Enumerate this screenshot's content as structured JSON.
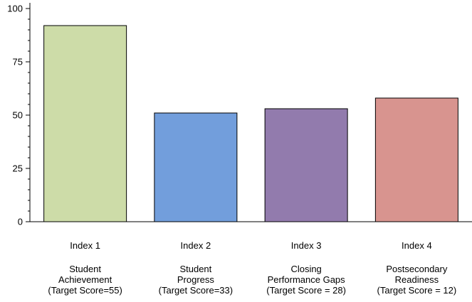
{
  "chart_data": {
    "type": "bar",
    "categories": [
      {
        "index": "Index 1",
        "lines": [
          "Student",
          "Achievement",
          "(Target Score=55)"
        ]
      },
      {
        "index": "Index 2",
        "lines": [
          "Student",
          "Progress",
          "(Target Score=33)"
        ]
      },
      {
        "index": "Index 3",
        "lines": [
          "Closing",
          "Performance Gaps",
          "(Target Score = 28)"
        ]
      },
      {
        "index": "Index 4",
        "lines": [
          "Postsecondary",
          "Readiness",
          "(Target Score = 12)"
        ]
      }
    ],
    "values": [
      92,
      51,
      53,
      58
    ],
    "colors": [
      "#cddca8",
      "#729edc",
      "#927bad",
      "#d8948f"
    ],
    "ylim": [
      0,
      100
    ],
    "yticks": [
      0,
      25,
      50,
      75,
      100
    ],
    "grid": false,
    "title": "",
    "xlabel": "",
    "ylabel": ""
  }
}
